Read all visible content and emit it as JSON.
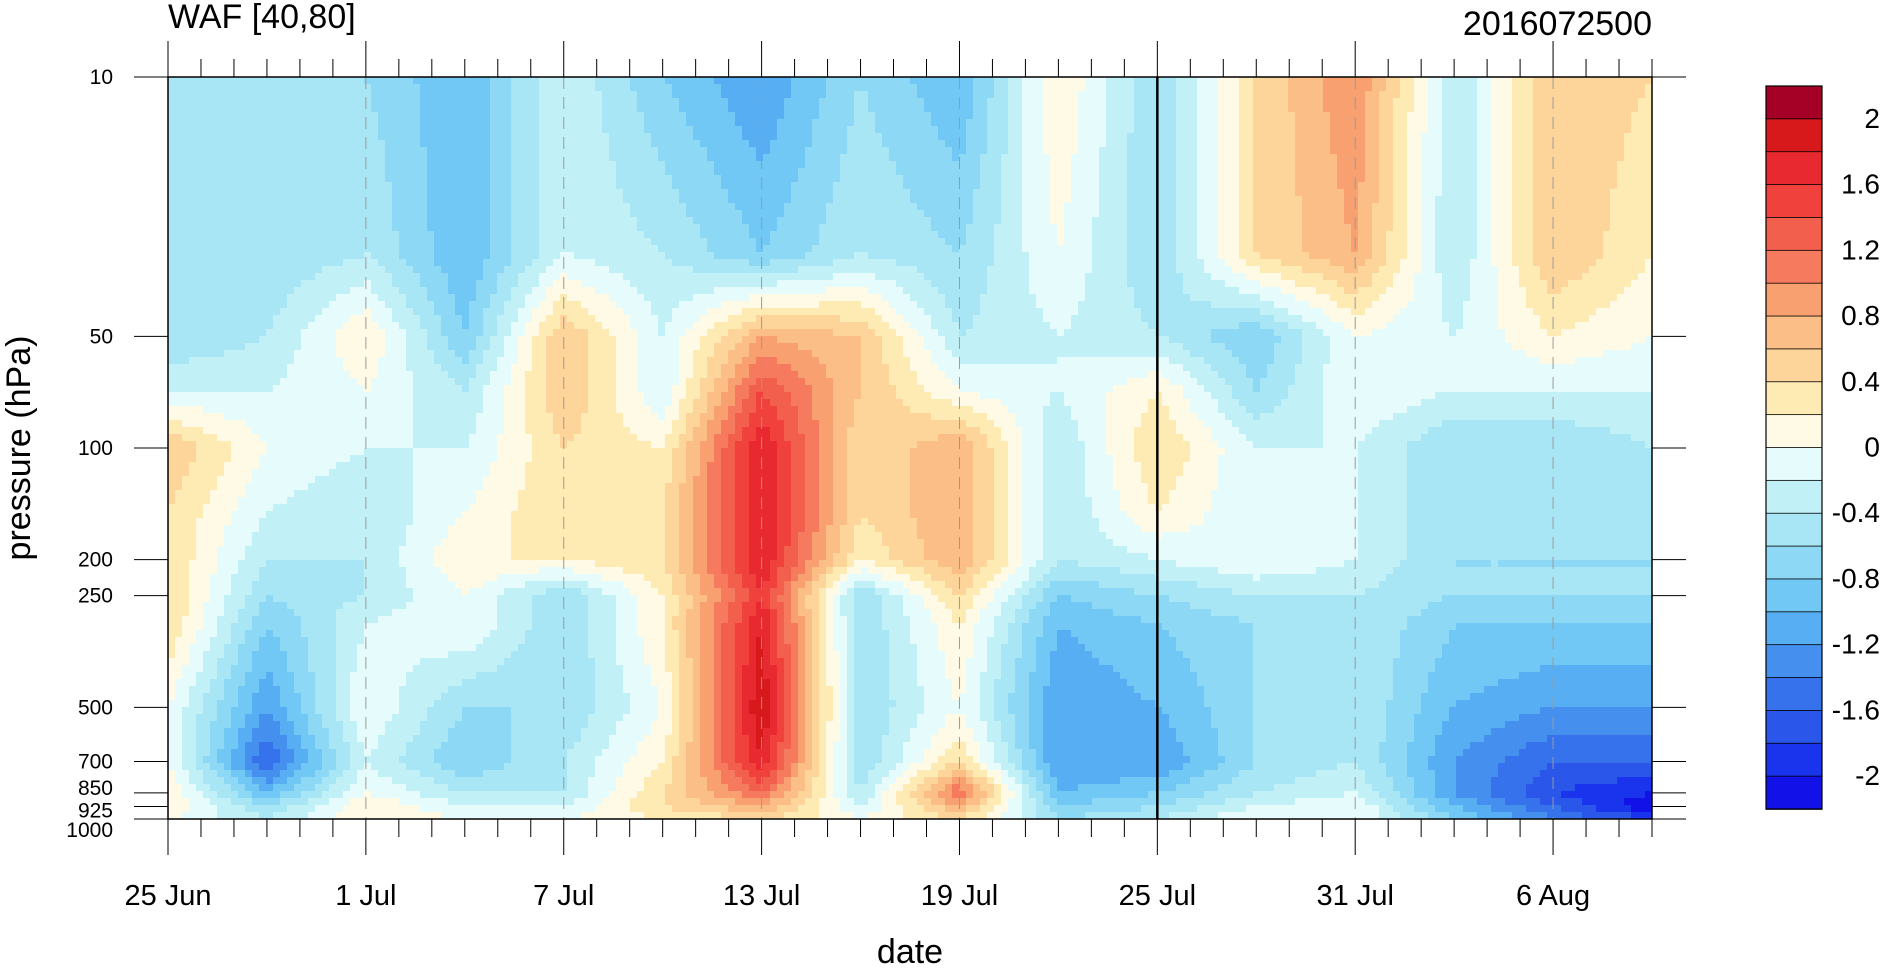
{
  "chart_data": {
    "type": "heatmap",
    "title": "WAF [40,80]",
    "subtitle": "2016072500",
    "xlabel": "date",
    "ylabel": "pressure (hPa)",
    "x_ticks": [
      "25 Jun",
      "1 Jul",
      "7 Jul",
      "13 Jul",
      "19 Jul",
      "25 Jul",
      "31 Jul",
      "6 Aug"
    ],
    "x_tick_days": [
      0,
      6,
      12,
      18,
      24,
      30,
      36,
      42
    ],
    "x_range_days": [
      0,
      45
    ],
    "y_ticks": [
      "10",
      "50",
      "100",
      "200",
      "250",
      "500",
      "700",
      "850",
      "925",
      "1000"
    ],
    "y_tick_values": [
      10,
      50,
      100,
      200,
      250,
      500,
      700,
      850,
      925,
      1000
    ],
    "y_range": [
      10,
      1000
    ],
    "y_scale": "log",
    "y_inverted": true,
    "forecast_marker_day": 30,
    "colorbar_labels": [
      "2",
      "1.6",
      "1.2",
      "0.8",
      "0.4",
      "0",
      "-0.4",
      "-0.8",
      "-1.2",
      "-1.6",
      "-2"
    ],
    "colorbar_levels": [
      2.2,
      2.0,
      1.8,
      1.6,
      1.4,
      1.2,
      1.0,
      0.8,
      0.6,
      0.4,
      0.2,
      0,
      -0.2,
      -0.4,
      -0.6,
      -0.8,
      -1.0,
      -1.2,
      -1.4,
      -1.6,
      -1.8,
      -2.0,
      -2.2
    ],
    "colorbar_colors": [
      "#a50026",
      "#d7191c",
      "#e8292f",
      "#f0413d",
      "#f25f4c",
      "#f57a5e",
      "#f8a06f",
      "#fbbe86",
      "#fdd49a",
      "#fdebb3",
      "#fffae6",
      "#e6fbfb",
      "#c1f0f7",
      "#a8e6f5",
      "#8dd8f5",
      "#72c8f5",
      "#58aef2",
      "#4590ee",
      "#3572eb",
      "#2a56ea",
      "#1a34ed",
      "#1212e8"
    ],
    "pressure_levels": [
      10,
      30,
      50,
      70,
      100,
      150,
      200,
      250,
      300,
      500,
      700,
      850,
      925,
      1000
    ],
    "days": [
      0,
      3,
      6,
      9,
      12,
      15,
      18,
      21,
      24,
      27,
      30,
      33,
      36,
      39,
      42,
      45
    ],
    "values": [
      [
        -0.4,
        -0.4,
        -0.6,
        -1.0,
        -0.2,
        -0.8,
        -1.2,
        -0.6,
        -1.0,
        0.2,
        -0.6,
        0.4,
        1.0,
        -0.4,
        0.6,
        0.4
      ],
      [
        -0.4,
        -0.6,
        -0.4,
        -1.0,
        -0.2,
        -0.4,
        -0.8,
        -0.4,
        -0.6,
        0.0,
        -0.6,
        0.4,
        0.8,
        -0.4,
        0.6,
        0.2
      ],
      [
        -0.6,
        -0.4,
        0.2,
        -0.8,
        0.6,
        -0.2,
        0.8,
        0.6,
        -0.4,
        -0.2,
        -0.4,
        -0.8,
        0.0,
        -0.2,
        0.2,
        0.0
      ],
      [
        -0.2,
        -0.2,
        0.0,
        -0.4,
        0.6,
        -0.2,
        1.4,
        0.6,
        0.0,
        -0.2,
        0.2,
        -0.6,
        0.0,
        -0.2,
        -0.2,
        -0.2
      ],
      [
        0.6,
        0.0,
        -0.2,
        -0.2,
        0.4,
        0.2,
        1.8,
        0.4,
        0.8,
        -0.4,
        0.4,
        -0.2,
        -0.2,
        -0.6,
        -0.6,
        -0.4
      ],
      [
        0.4,
        -0.2,
        -0.4,
        0.0,
        0.4,
        0.4,
        1.8,
        0.4,
        0.8,
        -0.4,
        0.2,
        -0.2,
        -0.2,
        -0.6,
        -0.6,
        -0.6
      ],
      [
        0.4,
        -0.4,
        -0.4,
        0.2,
        0.2,
        0.4,
        1.8,
        0.2,
        0.8,
        -0.4,
        -0.2,
        0.0,
        -0.2,
        -0.6,
        -0.6,
        -0.6
      ],
      [
        0.4,
        -0.6,
        -0.4,
        0.0,
        -0.6,
        0.2,
        1.6,
        -0.6,
        0.4,
        -0.8,
        -0.6,
        -0.4,
        -0.4,
        -0.6,
        -0.6,
        -0.6
      ],
      [
        0.4,
        -0.8,
        -0.2,
        0.0,
        -0.6,
        0.2,
        1.8,
        -0.6,
        0.2,
        -1.0,
        -0.8,
        -0.6,
        -0.4,
        -0.8,
        -0.8,
        -0.8
      ],
      [
        0.0,
        -1.2,
        0.0,
        -0.6,
        -0.6,
        0.0,
        2.0,
        -0.6,
        0.0,
        -1.2,
        -1.0,
        -0.6,
        -0.4,
        -1.0,
        -1.2,
        -1.2
      ],
      [
        0.0,
        -1.6,
        -0.2,
        -0.8,
        -0.4,
        0.2,
        1.8,
        -0.6,
        0.4,
        -1.2,
        -1.2,
        -0.6,
        -0.4,
        -1.2,
        -1.6,
        -1.6
      ],
      [
        0.2,
        -1.0,
        0.0,
        -0.4,
        -0.4,
        0.4,
        1.2,
        -0.4,
        1.2,
        -1.0,
        -0.8,
        -0.4,
        -0.2,
        -1.2,
        -1.8,
        -2.0
      ],
      [
        0.2,
        -0.6,
        0.2,
        -0.2,
        -0.2,
        0.4,
        0.8,
        -0.2,
        0.8,
        -0.8,
        -0.6,
        -0.2,
        0.0,
        -1.0,
        -1.6,
        -2.2
      ],
      [
        0.0,
        -0.4,
        0.2,
        0.0,
        0.0,
        0.2,
        0.4,
        0.0,
        0.4,
        -0.6,
        -0.4,
        0.0,
        0.0,
        -0.8,
        -1.4,
        -1.8
      ]
    ]
  }
}
